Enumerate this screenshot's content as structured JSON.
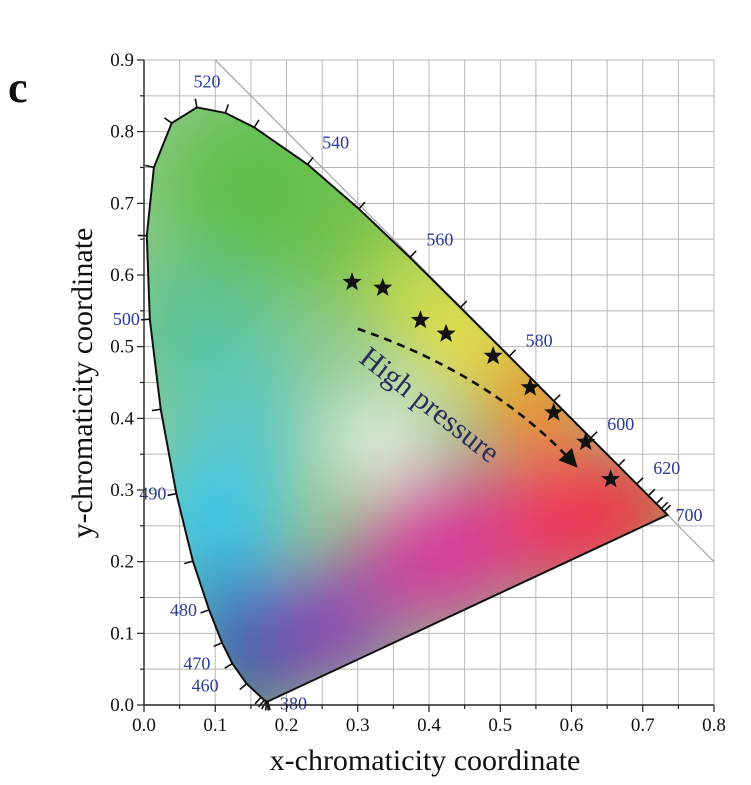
{
  "chart_data": {
    "type": "scatter",
    "panel_label": "c",
    "xlabel": "x-chromaticity coordinate",
    "ylabel": "y-chromaticity coordinate",
    "xlim": [
      0.0,
      0.8
    ],
    "ylim": [
      0.0,
      0.9
    ],
    "x_ticks": [
      "0.0",
      "0.1",
      "0.2",
      "0.3",
      "0.4",
      "0.5",
      "0.6",
      "0.7",
      "0.8"
    ],
    "y_ticks": [
      "0.0",
      "0.1",
      "0.2",
      "0.3",
      "0.4",
      "0.5",
      "0.6",
      "0.7",
      "0.8",
      "0.9"
    ],
    "grid": true,
    "grid_minor": true,
    "annotation": "High pressure",
    "spectral_locus": [
      {
        "nm": "380",
        "x": 0.1741,
        "y": 0.005,
        "label": true
      },
      {
        "nm": "",
        "x": 0.1738,
        "y": 0.0049
      },
      {
        "nm": "",
        "x": 0.1733,
        "y": 0.0048
      },
      {
        "nm": "",
        "x": 0.1726,
        "y": 0.0048
      },
      {
        "nm": "",
        "x": 0.1714,
        "y": 0.0051
      },
      {
        "nm": "",
        "x": 0.1689,
        "y": 0.0069
      },
      {
        "nm": "",
        "x": 0.1644,
        "y": 0.0109
      },
      {
        "nm": "460",
        "x": 0.144,
        "y": 0.0297,
        "label": true
      },
      {
        "nm": "470",
        "x": 0.1241,
        "y": 0.0578,
        "label": true
      },
      {
        "nm": "",
        "x": 0.1096,
        "y": 0.0868
      },
      {
        "nm": "480",
        "x": 0.0913,
        "y": 0.1327,
        "label": true
      },
      {
        "nm": "",
        "x": 0.0687,
        "y": 0.2007
      },
      {
        "nm": "490",
        "x": 0.0454,
        "y": 0.295,
        "label": true
      },
      {
        "nm": "",
        "x": 0.0235,
        "y": 0.4127
      },
      {
        "nm": "500",
        "x": 0.0082,
        "y": 0.5384,
        "label": true
      },
      {
        "nm": "",
        "x": 0.0039,
        "y": 0.6548
      },
      {
        "nm": "",
        "x": 0.0139,
        "y": 0.7502
      },
      {
        "nm": "",
        "x": 0.0389,
        "y": 0.812
      },
      {
        "nm": "520",
        "x": 0.0743,
        "y": 0.8338,
        "label": true
      },
      {
        "nm": "",
        "x": 0.1142,
        "y": 0.8262
      },
      {
        "nm": "",
        "x": 0.1547,
        "y": 0.8059
      },
      {
        "nm": "540",
        "x": 0.2296,
        "y": 0.7543,
        "label": true
      },
      {
        "nm": "",
        "x": 0.3016,
        "y": 0.6923
      },
      {
        "nm": "560",
        "x": 0.3731,
        "y": 0.6245,
        "label": true
      },
      {
        "nm": "",
        "x": 0.4441,
        "y": 0.5547
      },
      {
        "nm": "580",
        "x": 0.5125,
        "y": 0.4866,
        "label": true
      },
      {
        "nm": "",
        "x": 0.5752,
        "y": 0.4242
      },
      {
        "nm": "600",
        "x": 0.627,
        "y": 0.3725,
        "label": true
      },
      {
        "nm": "",
        "x": 0.6658,
        "y": 0.334
      },
      {
        "nm": "620",
        "x": 0.6915,
        "y": 0.3083,
        "label": true
      },
      {
        "nm": "",
        "x": 0.7079,
        "y": 0.292
      },
      {
        "nm": "",
        "x": 0.719,
        "y": 0.2809
      },
      {
        "nm": "",
        "x": 0.726,
        "y": 0.274
      },
      {
        "nm": "",
        "x": 0.73,
        "y": 0.27
      },
      {
        "nm": "700",
        "x": 0.7347,
        "y": 0.2653,
        "label": true
      }
    ],
    "series": [
      {
        "marker": "star",
        "color": "#111111",
        "points": [
          {
            "x": 0.292,
            "y": 0.59
          },
          {
            "x": 0.335,
            "y": 0.582
          },
          {
            "x": 0.388,
            "y": 0.537
          },
          {
            "x": 0.424,
            "y": 0.518
          },
          {
            "x": 0.49,
            "y": 0.487
          },
          {
            "x": 0.542,
            "y": 0.443
          },
          {
            "x": 0.575,
            "y": 0.408
          },
          {
            "x": 0.62,
            "y": 0.367
          },
          {
            "x": 0.655,
            "y": 0.315
          }
        ]
      }
    ],
    "arrow": {
      "from": {
        "x": 0.3,
        "y": 0.525
      },
      "via": {
        "x": 0.49,
        "y": 0.46
      },
      "to": {
        "x": 0.605,
        "y": 0.335
      },
      "style": "dashed"
    },
    "colors": {
      "locus_stroke": "#111111",
      "wavelength_label": "#2a3a9a",
      "grid": "#b8b8b8",
      "boundary_line": "#aaaaaa"
    }
  }
}
